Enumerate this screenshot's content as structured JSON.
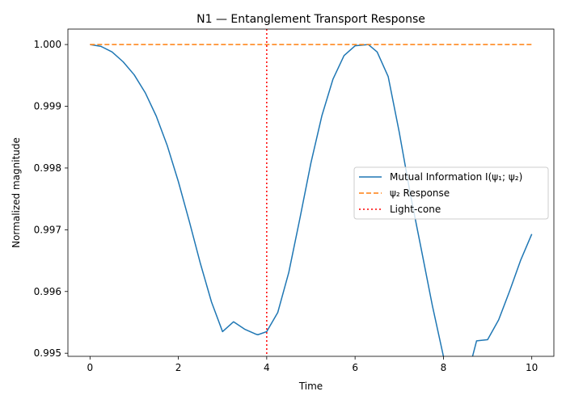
{
  "chart_data": {
    "type": "line",
    "title": "N1 — Entanglement Transport Response",
    "xlabel": "Time",
    "ylabel": "Normalized magnitude",
    "xlim": [
      -0.5,
      10.5
    ],
    "ylim": [
      0.99495,
      1.00025
    ],
    "xticks": [
      0,
      2,
      4,
      6,
      8,
      10
    ],
    "xtick_labels": [
      "0",
      "2",
      "4",
      "6",
      "8",
      "10"
    ],
    "yticks": [
      0.995,
      0.996,
      0.997,
      0.998,
      0.999,
      1.0
    ],
    "ytick_labels": [
      "0.995",
      "0.996",
      "0.997",
      "0.998",
      "0.999",
      "1.000"
    ],
    "grid": false,
    "legend_position": "center-right",
    "series": [
      {
        "name": "Mutual Information I(ψ₁; ψ₂)",
        "color": "#1f77b4",
        "style": "solid",
        "x": [
          0,
          0.25,
          0.5,
          0.75,
          1.0,
          1.25,
          1.5,
          1.75,
          2.0,
          2.25,
          2.5,
          2.75,
          3.0,
          3.25,
          3.5,
          3.75,
          3.8,
          4.0,
          4.25,
          4.5,
          4.75,
          5.0,
          5.25,
          5.5,
          5.75,
          6.0,
          6.3,
          6.5,
          6.75,
          7.0,
          7.25,
          7.5,
          7.75,
          8.0,
          8.25,
          8.5,
          8.75,
          9.0,
          9.25,
          9.5,
          9.75,
          10.0
        ],
        "y": [
          1.0,
          0.99997,
          0.99988,
          0.99972,
          0.99951,
          0.99922,
          0.99884,
          0.99836,
          0.99778,
          0.99713,
          0.99645,
          0.99583,
          0.99535,
          0.99551,
          0.99539,
          0.99531,
          0.9953,
          0.99535,
          0.99566,
          0.99631,
          0.99718,
          0.99808,
          0.99885,
          0.99944,
          0.99982,
          0.99998,
          1.0,
          0.99988,
          0.99948,
          0.99858,
          0.99758,
          0.99668,
          0.99577,
          0.99495,
          0.99443,
          0.99451,
          0.9952,
          0.99522,
          0.99554,
          0.99601,
          0.99651,
          0.99693
        ]
      },
      {
        "name": "ψ₂ Response",
        "color": "#ff7f0e",
        "style": "dashed",
        "x": [
          0,
          10
        ],
        "y": [
          1.0,
          1.0
        ]
      }
    ],
    "vlines": [
      {
        "name": "Light-cone",
        "x": 4,
        "color": "#ff0000",
        "style": "dotted"
      }
    ]
  }
}
